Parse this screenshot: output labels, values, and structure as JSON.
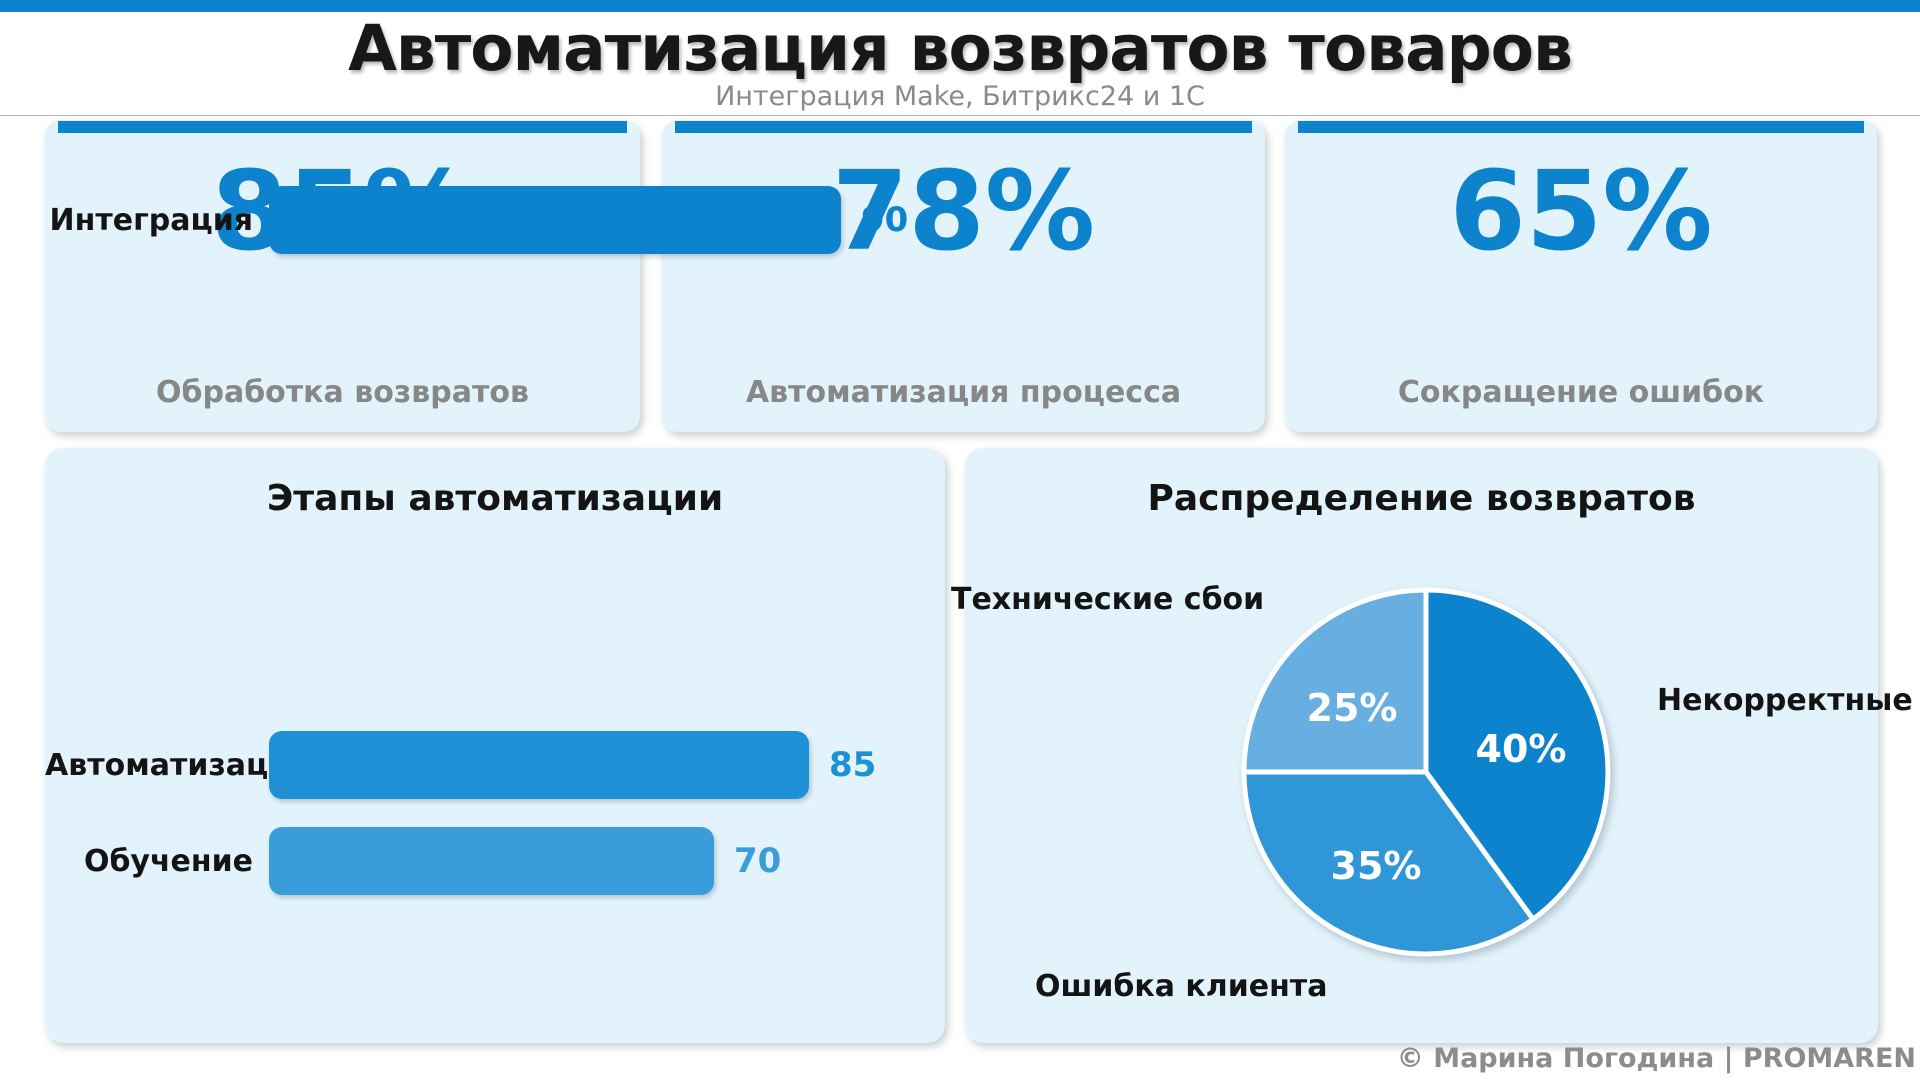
{
  "page": {
    "title": "Автоматизация возвратов товаров",
    "subtitle": "Интеграция Make, Битрикс24 и 1С",
    "footer": "© Марина Погодина | PROMAREN",
    "accent_color": "#0d83cd",
    "panel_background": "#e2f3fb"
  },
  "kpis": [
    {
      "value": "85%",
      "label": "Обработка возвратов"
    },
    {
      "value": "78%",
      "label": "Автоматизация процесса"
    },
    {
      "value": "65%",
      "label": "Сокращение ошибок"
    }
  ],
  "chart_data": [
    {
      "type": "bar",
      "title": "Этапы автоматизации",
      "orientation": "horizontal",
      "categories": [
        "Интеграция",
        "Автоматизация",
        "Обучение"
      ],
      "values": [
        90,
        85,
        70
      ],
      "bar_colors": [
        "#0d83cd",
        "#2090d6",
        "#3b9cdb"
      ],
      "value_label_position": "right-of-bar",
      "xlim": [
        0,
        100
      ],
      "grid": false
    },
    {
      "type": "pie",
      "title": "Распределение возвратов",
      "labels": [
        "Некорректные",
        "Ошибка клиента",
        "Технические сбои"
      ],
      "values": [
        40,
        35,
        25
      ],
      "pct_labels": [
        "40%",
        "35%",
        "25%"
      ],
      "colors": [
        "#0d83cd",
        "#2f96d8",
        "#66afe0"
      ],
      "start_angle_deg": 90,
      "direction": "clockwise",
      "separator_color": "#ffffff"
    }
  ]
}
